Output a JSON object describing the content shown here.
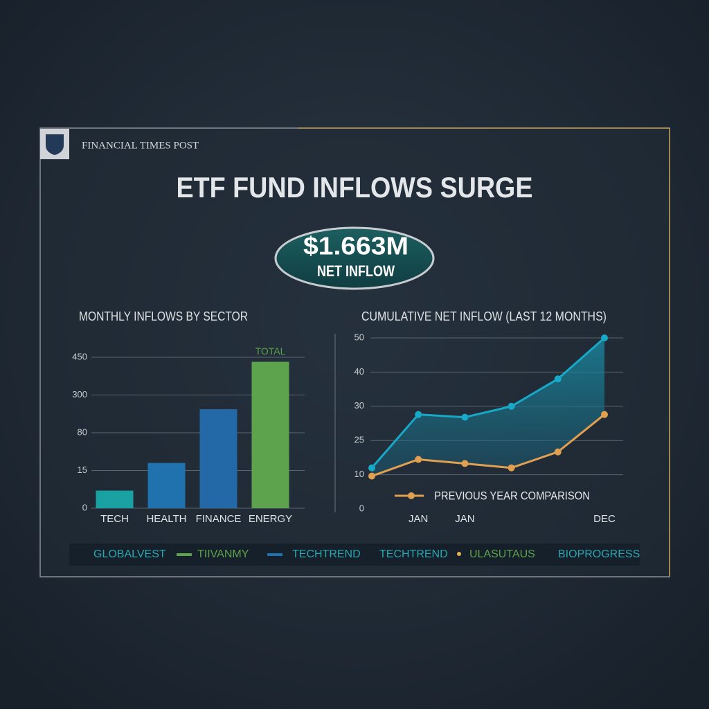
{
  "header": {
    "publisher": "FINANCIAL TIMES POST",
    "title": "ETF FUND INFLOWS SURGE"
  },
  "badge": {
    "value": "$1.663M",
    "label": "NET INFLOW"
  },
  "chart_data": [
    {
      "type": "bar",
      "title": "MONTHLY INFLOWS BY SECTOR",
      "categories": [
        "TECH",
        "HEALTH",
        "FINANCE",
        "ENERGY"
      ],
      "values": [
        7,
        28,
        217,
        432
      ],
      "colors": [
        "#1aa2a2",
        "#1f72ae",
        "#2369a8",
        "#5da24c"
      ],
      "annotation": "TOTAL",
      "ylim": [
        0,
        450
      ],
      "yticks": [
        0,
        15,
        80,
        300,
        450
      ],
      "grid": true
    },
    {
      "type": "line",
      "title": "CUMULATIVE NET INFLOW (LAST 12 MONTHS)",
      "categories": [
        null,
        "JAN",
        "JAN",
        null,
        null,
        "DEC"
      ],
      "series": [
        {
          "color": "#19a9c8",
          "values": [
            13,
            28.8,
            28.4,
            30,
            38,
            50
          ]
        },
        {
          "name": "PREVIOUS YEAR COMPARISON",
          "color": "#e0a050",
          "values": [
            9.6,
            16.7,
            14.9,
            13,
            20,
            28.8
          ]
        }
      ],
      "ylim": [
        0,
        50
      ],
      "yticks": [
        0,
        10,
        25,
        30,
        40,
        50
      ],
      "grid": true
    }
  ],
  "legend_strip": [
    {
      "label": "GLOBALVEST",
      "color": "#2aa6b0"
    },
    {
      "label": "TIIVANMY",
      "color": "#5da24c",
      "marker": "line"
    },
    {
      "label": "TECHTREND",
      "color": "#2aa6b0",
      "marker": "line",
      "marker_color": "#1f72ae"
    },
    {
      "label": "TECHTREND",
      "color": "#2aa6b0"
    },
    {
      "label": "ULASUTAUS",
      "color": "#5da24c",
      "marker": "dot",
      "marker_color": "#e0b050"
    },
    {
      "label": "BIOPROGRESS",
      "color": "#2aa6b0"
    }
  ]
}
